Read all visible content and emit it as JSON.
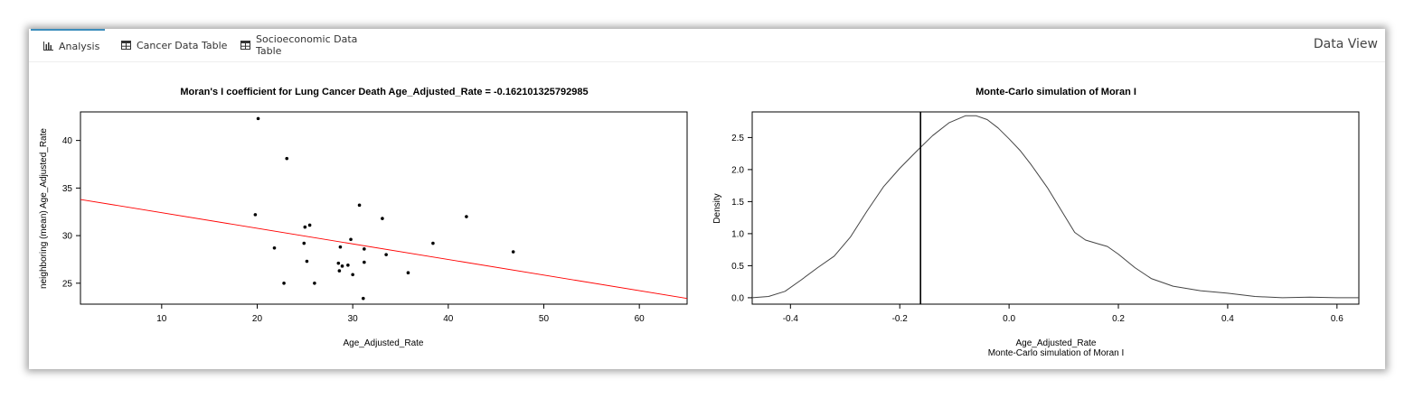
{
  "tabs": [
    {
      "label": "Analysis",
      "icon": "bar-chart-icon",
      "active": true
    },
    {
      "label": "Cancer Data Table",
      "icon": "table-icon",
      "active": false
    },
    {
      "label": "Socioeconomic Data Table",
      "icon": "table-icon",
      "active": false
    }
  ],
  "header": {
    "title": "Data View"
  },
  "chart_data": [
    {
      "type": "scatter",
      "title": "Moran's I coefficient for Lung Cancer Death Age_Adjusted_Rate = -0.162101325792985",
      "xlabel": "Age_Adjusted_Rate",
      "ylabel": "neighboring (mean) Age_Adjusted_Rate",
      "xlim": [
        1.5,
        65
      ],
      "ylim": [
        22.8,
        43
      ],
      "xticks": [
        10,
        20,
        30,
        40,
        50,
        60
      ],
      "yticks": [
        25,
        30,
        35,
        40
      ],
      "grid": false,
      "points": [
        {
          "x": 20.1,
          "y": 42.3
        },
        {
          "x": 23.1,
          "y": 38.1
        },
        {
          "x": 19.8,
          "y": 32.2
        },
        {
          "x": 30.7,
          "y": 33.2
        },
        {
          "x": 33.1,
          "y": 31.8
        },
        {
          "x": 41.9,
          "y": 32.0
        },
        {
          "x": 25.5,
          "y": 31.1
        },
        {
          "x": 25.0,
          "y": 30.9
        },
        {
          "x": 29.8,
          "y": 29.6
        },
        {
          "x": 24.9,
          "y": 29.2
        },
        {
          "x": 38.4,
          "y": 29.2
        },
        {
          "x": 21.8,
          "y": 28.7
        },
        {
          "x": 28.7,
          "y": 28.8
        },
        {
          "x": 31.2,
          "y": 28.6
        },
        {
          "x": 46.8,
          "y": 28.3
        },
        {
          "x": 33.5,
          "y": 28.0
        },
        {
          "x": 25.2,
          "y": 27.3
        },
        {
          "x": 28.5,
          "y": 27.1
        },
        {
          "x": 31.2,
          "y": 27.2
        },
        {
          "x": 28.9,
          "y": 26.8
        },
        {
          "x": 29.5,
          "y": 26.9
        },
        {
          "x": 28.6,
          "y": 26.3
        },
        {
          "x": 30.0,
          "y": 25.9
        },
        {
          "x": 35.8,
          "y": 26.1
        },
        {
          "x": 22.8,
          "y": 25.0
        },
        {
          "x": 26.0,
          "y": 25.0
        },
        {
          "x": 31.1,
          "y": 23.4
        }
      ],
      "regression_line": {
        "x": [
          1.5,
          65
        ],
        "y": [
          33.8,
          23.4
        ],
        "color": "#ff0000"
      }
    },
    {
      "type": "line",
      "title": "Monte-Carlo simulation of Moran I",
      "xlabel": "Age_Adjusted_Rate",
      "sublabel": "Monte-Carlo simulation of Moran I",
      "ylabel": "Density",
      "xlim": [
        -0.47,
        0.64
      ],
      "ylim": [
        -0.1,
        2.9
      ],
      "xticks": [
        -0.4,
        -0.2,
        0.0,
        0.2,
        0.4,
        0.6
      ],
      "xticklabels": [
        "-0.4",
        "-0.2",
        "0.0",
        "0.2",
        "0.4",
        "0.6"
      ],
      "yticks": [
        0.0,
        0.5,
        1.0,
        1.5,
        2.0,
        2.5
      ],
      "yticklabels": [
        "0.0",
        "0.5",
        "1.0",
        "1.5",
        "2.0",
        "2.5"
      ],
      "grid": false,
      "x": [
        -0.47,
        -0.44,
        -0.41,
        -0.38,
        -0.35,
        -0.32,
        -0.29,
        -0.26,
        -0.23,
        -0.2,
        -0.17,
        -0.14,
        -0.11,
        -0.08,
        -0.06,
        -0.04,
        -0.02,
        0.0,
        0.02,
        0.04,
        0.07,
        0.1,
        0.12,
        0.14,
        0.16,
        0.18,
        0.2,
        0.23,
        0.26,
        0.3,
        0.35,
        0.4,
        0.45,
        0.5,
        0.55,
        0.6,
        0.64
      ],
      "y": [
        0.0,
        0.02,
        0.1,
        0.28,
        0.47,
        0.65,
        0.95,
        1.35,
        1.73,
        2.02,
        2.28,
        2.53,
        2.73,
        2.84,
        2.84,
        2.78,
        2.65,
        2.48,
        2.3,
        2.08,
        1.72,
        1.3,
        1.02,
        0.9,
        0.85,
        0.8,
        0.68,
        0.47,
        0.3,
        0.18,
        0.11,
        0.07,
        0.02,
        0.0,
        0.01,
        0.0,
        0.0
      ],
      "observed_line": {
        "x": -0.162
      }
    }
  ]
}
